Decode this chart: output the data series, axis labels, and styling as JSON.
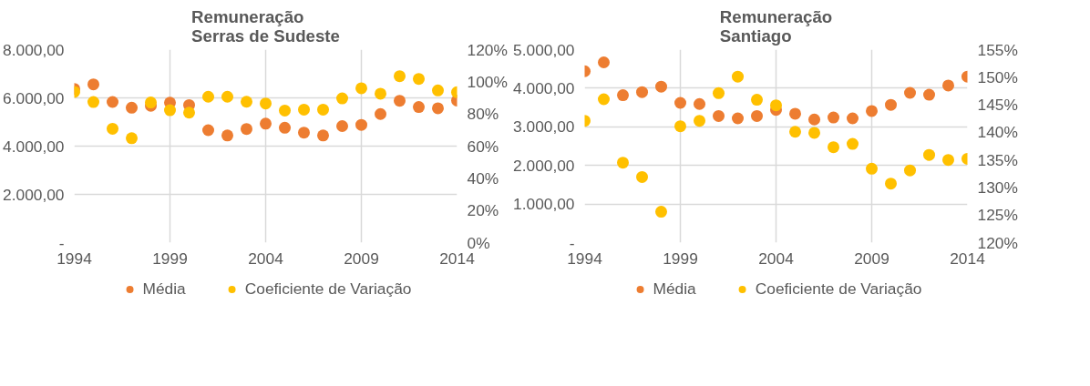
{
  "chart_data": [
    {
      "type": "scatter",
      "title": "Remuneração\nSerras de Sudeste",
      "x": [
        1994,
        1995,
        1996,
        1997,
        1998,
        1999,
        2000,
        2001,
        2002,
        2003,
        2004,
        2005,
        2006,
        2007,
        2008,
        2009,
        2010,
        2011,
        2012,
        2013,
        2014
      ],
      "series": [
        {
          "name": "Média",
          "color": "#ed7d31",
          "values": [
            6370,
            6560,
            5830,
            5590,
            5670,
            5800,
            5700,
            4660,
            4440,
            4710,
            4930,
            4760,
            4560,
            4440,
            4830,
            4880,
            5330,
            5880,
            5620,
            5570,
            5890
          ]
        },
        {
          "name": "Coeficiente de Variação",
          "color": "#ffc000",
          "axis": "y2",
          "values": [
            93.7,
            87.4,
            70.8,
            64.9,
            87.1,
            82.3,
            80.8,
            90.7,
            90.7,
            87.6,
            86.5,
            82.1,
            82.7,
            82.7,
            89.7,
            96.0,
            92.6,
            103.5,
            101.8,
            94.6,
            93.5
          ]
        }
      ],
      "xlim": [
        1994,
        2014
      ],
      "xticks": [
        1994,
        1999,
        2004,
        2009,
        2014
      ],
      "ylim": [
        0,
        8000
      ],
      "yticks": [
        {
          "value": 0,
          "label": "-"
        },
        {
          "value": 2000,
          "label": "2.000,00"
        },
        {
          "value": 4000,
          "label": "4.000,00"
        },
        {
          "value": 6000,
          "label": "6.000,00"
        },
        {
          "value": 8000,
          "label": "8.000,00"
        }
      ],
      "y2lim": [
        0,
        120
      ],
      "y2ticks": [
        {
          "value": 0,
          "label": "0%"
        },
        {
          "value": 20,
          "label": "20%"
        },
        {
          "value": 40,
          "label": "40%"
        },
        {
          "value": 60,
          "label": "60%"
        },
        {
          "value": 80,
          "label": "80%"
        },
        {
          "value": 100,
          "label": "100%"
        },
        {
          "value": 120,
          "label": "120%"
        }
      ],
      "grid": true,
      "legend": "bottom",
      "marker": "circle"
    },
    {
      "type": "scatter",
      "title": "Remuneração\nSantiago",
      "x": [
        1994,
        1995,
        1996,
        1997,
        1998,
        1999,
        2000,
        2001,
        2002,
        2003,
        2004,
        2005,
        2006,
        2007,
        2008,
        2009,
        2010,
        2011,
        2012,
        2013,
        2014
      ],
      "series": [
        {
          "name": "Média",
          "color": "#ed7d31",
          "values": [
            4440,
            4670,
            3820,
            3900,
            4040,
            3620,
            3590,
            3280,
            3220,
            3280,
            3440,
            3340,
            3190,
            3240,
            3220,
            3410,
            3570,
            3880,
            3830,
            4070,
            4300
          ]
        },
        {
          "name": "Coeficiente de Variação",
          "color": "#ffc000",
          "axis": "y2",
          "values": [
            142.1,
            146.0,
            134.5,
            131.9,
            125.6,
            141.1,
            142.1,
            147.1,
            150.1,
            145.9,
            144.9,
            140.1,
            139.9,
            137.3,
            137.9,
            133.4,
            130.7,
            133.1,
            135.9,
            135.0,
            135.2
          ]
        }
      ],
      "xlim": [
        1994,
        2014
      ],
      "xticks": [
        1994,
        1999,
        2004,
        2009,
        2014
      ],
      "ylim": [
        0,
        5000
      ],
      "yticks": [
        {
          "value": 0,
          "label": "-"
        },
        {
          "value": 1000,
          "label": "1.000,00"
        },
        {
          "value": 2000,
          "label": "2.000,00"
        },
        {
          "value": 3000,
          "label": "3.000,00"
        },
        {
          "value": 4000,
          "label": "4.000,00"
        },
        {
          "value": 5000,
          "label": "5.000,00"
        }
      ],
      "y2lim": [
        120,
        155
      ],
      "y2ticks": [
        {
          "value": 120,
          "label": "120%"
        },
        {
          "value": 125,
          "label": "125%"
        },
        {
          "value": 130,
          "label": "130%"
        },
        {
          "value": 135,
          "label": "135%"
        },
        {
          "value": 140,
          "label": "140%"
        },
        {
          "value": 145,
          "label": "145%"
        },
        {
          "value": 150,
          "label": "150%"
        },
        {
          "value": 155,
          "label": "155%"
        }
      ],
      "grid": true,
      "legend": "bottom",
      "marker": "circle"
    }
  ]
}
